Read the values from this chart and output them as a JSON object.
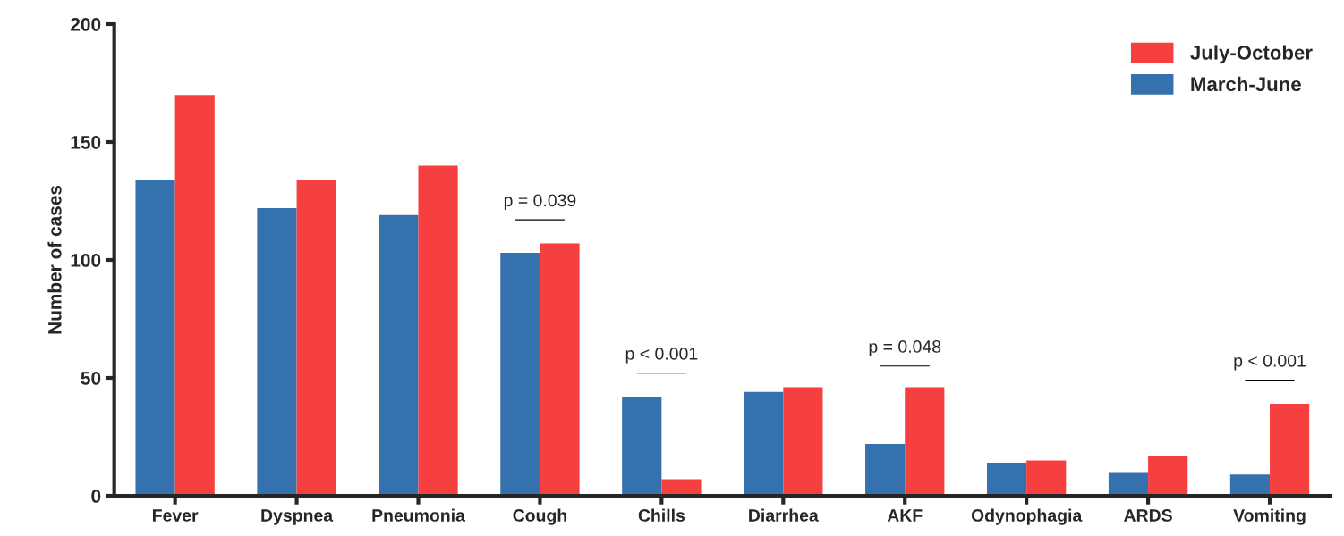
{
  "chart_data": {
    "type": "bar",
    "ylabel": "Number of cases",
    "categories": [
      "Fever",
      "Dyspnea",
      "Pneumonia",
      "Cough",
      "Chills",
      "Diarrhea",
      "AKF",
      "Odynophagia",
      "ARDS",
      "Vomiting"
    ],
    "series": [
      {
        "name": "March-June",
        "color": "#3471ad",
        "values": [
          134,
          122,
          119,
          103,
          42,
          44,
          22,
          14,
          10,
          9
        ]
      },
      {
        "name": "July-October",
        "color": "#f5403f",
        "values": [
          170,
          134,
          140,
          107,
          7,
          46,
          46,
          15,
          17,
          39
        ]
      }
    ],
    "ylim": [
      0,
      200
    ],
    "yticks": [
      0,
      50,
      100,
      150,
      200
    ],
    "grid": false,
    "legend": "top right",
    "annotations": [
      "p = 0.039",
      "p < 0.001",
      "p = 0.048",
      "p < 0.001"
    ]
  }
}
